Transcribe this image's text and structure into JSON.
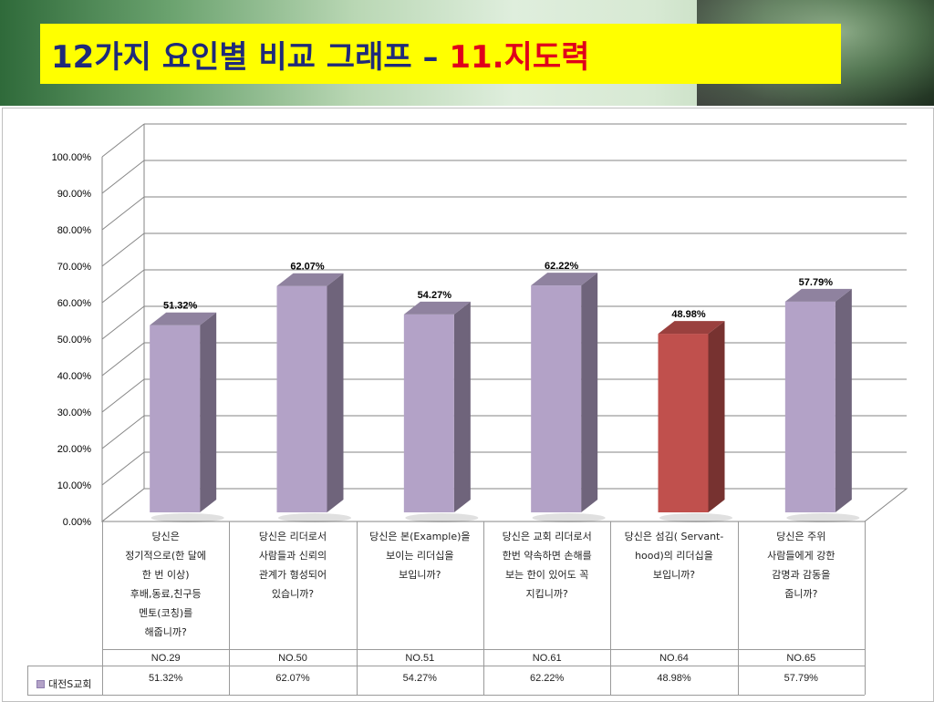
{
  "title": {
    "prefix": "12가지 요인별 비교 그래프 – ",
    "highlight": "11.지도력"
  },
  "chart_data": {
    "type": "bar",
    "y_ticks": [
      "0.00%",
      "10.00%",
      "20.00%",
      "30.00%",
      "40.00%",
      "50.00%",
      "60.00%",
      "70.00%",
      "80.00%",
      "90.00%",
      "100.00%"
    ],
    "ylim": [
      0,
      100
    ],
    "categories": [
      "당신은 정기적으로(한 달에 한 번 이상) 후배,동료,친구등 멘토(코칭)를 해줍니까?",
      "당신은 리더로서 사람들과 신뢰의 관계가 형성되어 있습니까?",
      "당신은 본(Example)을 보이는 리더십을 보입니까?",
      "당신은 교회 리더로서 한번 약속하면 손해를 보는 한이 있어도 꼭 지킵니까?",
      "당신은 섬김( Servant-hood)의 리더십을 보입니까?",
      "당신은 주위 사람들에게 강한 감명과 감동을 줍니까?"
    ],
    "category_lines": [
      [
        "당신은",
        "정기적으로(한 달에",
        "한 번 이상)",
        "후배,동료,친구등",
        "멘토(코칭)를",
        "해줍니까?"
      ],
      [
        "당신은 리더로서",
        "사람들과 신뢰의",
        "관계가 형성되어",
        "있습니까?"
      ],
      [
        "당신은 본(Example)을",
        "보이는 리더십을",
        "보입니까?"
      ],
      [
        "당신은 교회 리더로서",
        "한번 약속하면 손해를",
        "보는 한이 있어도 꼭",
        "지킵니까?"
      ],
      [
        "당신은 섬김( Servant-",
        "hood)의 리더십을",
        "보입니까?"
      ],
      [
        "당신은 주위",
        "사람들에게 강한",
        "감명과 감동을",
        "줍니까?"
      ]
    ],
    "question_numbers": [
      "NO.29",
      "NO.50",
      "NO.51",
      "NO.61",
      "NO.64",
      "NO.65"
    ],
    "series": [
      {
        "name": "대전S교회",
        "values": [
          51.32,
          62.07,
          54.27,
          62.22,
          48.98,
          57.79
        ],
        "labels": [
          "51.32%",
          "62.07%",
          "54.27%",
          "62.22%",
          "48.98%",
          "57.79%"
        ]
      }
    ],
    "colors": {
      "default_bar": "#b3a2c7",
      "highlight_bar": "#c0504d",
      "highlight_index": 4
    },
    "grid": true,
    "legend": "table-left"
  }
}
